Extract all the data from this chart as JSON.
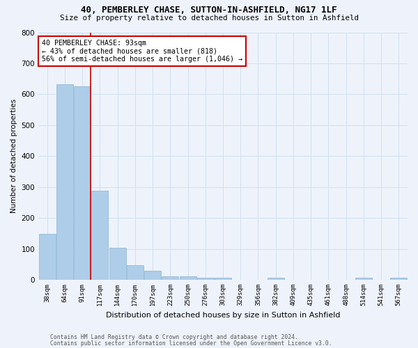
{
  "title_line1": "40, PEMBERLEY CHASE, SUTTON-IN-ASHFIELD, NG17 1LF",
  "title_line2": "Size of property relative to detached houses in Sutton in Ashfield",
  "xlabel": "Distribution of detached houses by size in Sutton in Ashfield",
  "ylabel": "Number of detached properties",
  "footer_line1": "Contains HM Land Registry data © Crown copyright and database right 2024.",
  "footer_line2": "Contains public sector information licensed under the Open Government Licence v3.0.",
  "annotation_line1": "40 PEMBERLEY CHASE: 93sqm",
  "annotation_line2": "← 43% of detached houses are smaller (818)",
  "annotation_line3": "56% of semi-detached houses are larger (1,046) →",
  "categories": [
    "38sqm",
    "64sqm",
    "91sqm",
    "117sqm",
    "144sqm",
    "170sqm",
    "197sqm",
    "223sqm",
    "250sqm",
    "276sqm",
    "303sqm",
    "329sqm",
    "356sqm",
    "382sqm",
    "409sqm",
    "435sqm",
    "461sqm",
    "488sqm",
    "514sqm",
    "541sqm",
    "567sqm"
  ],
  "values": [
    148,
    632,
    625,
    288,
    103,
    47,
    30,
    12,
    11,
    7,
    6,
    0,
    0,
    7,
    0,
    0,
    0,
    0,
    6,
    0,
    6
  ],
  "bar_color": "#aecde8",
  "bar_edge_color": "#8ab4d4",
  "vline_color": "#cc0000",
  "annotation_box_edge_color": "#cc0000",
  "annotation_box_face_color": "#ffffff",
  "grid_color": "#d0dff0",
  "background_color": "#eef3fb",
  "ylim": [
    0,
    800
  ],
  "yticks": [
    0,
    100,
    200,
    300,
    400,
    500,
    600,
    700,
    800
  ],
  "vline_x_index": 2.47
}
